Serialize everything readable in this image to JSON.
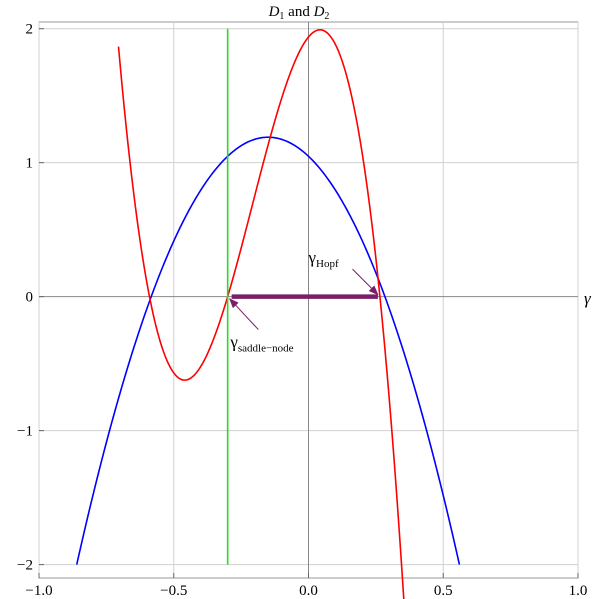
{
  "chart_data": {
    "type": "line",
    "title_parts": {
      "d": "D",
      "sub1": "1",
      "and": " and ",
      "d2": "D",
      "sub2": "2"
    },
    "xlabel": "γ",
    "ylabel": "",
    "xlim": [
      -1.0,
      1.0
    ],
    "ylim": [
      -2.1,
      2.05
    ],
    "xticks": [
      -1.0,
      -0.5,
      0.0,
      0.5,
      1.0
    ],
    "xtick_labels": [
      "−1.0",
      "−0.5",
      "0.0",
      "0.5",
      "1.0"
    ],
    "yticks": [
      -2,
      -1,
      0,
      1,
      2
    ],
    "ytick_labels": [
      "−2",
      "−1",
      "0",
      "1",
      "2"
    ],
    "grid": true,
    "series": [
      {
        "color": "#0000ff",
        "kind": "quadratic",
        "vertex": [
          -0.15,
          1.19
        ],
        "x_range": [
          -0.86,
          0.56
        ],
        "endpoint_y": -2.0
      },
      {
        "color": "#ff0000",
        "kind": "cubic",
        "roots": [
          -0.59,
          -0.3,
          0.265
        ],
        "x_range": [
          -0.705,
          0.355
        ],
        "local_min": [
          -0.46,
          -0.56
        ],
        "local_max": [
          0.05,
          1.99
        ]
      },
      {
        "color": "#22dd22",
        "kind": "vertical",
        "x": -0.3,
        "y_range": [
          -2.0,
          2.0
        ]
      },
      {
        "color": "#7a1f6a",
        "kind": "segment",
        "x_range": [
          -0.3,
          0.265
        ],
        "y": 0.0
      }
    ],
    "annotations": [
      {
        "id": "hopf",
        "base": "γ",
        "sub": "Hopf",
        "x": 0.0,
        "y": 0.25,
        "points_to": [
          0.265,
          0.0
        ]
      },
      {
        "id": "saddle-node",
        "base": "γ",
        "sub": "saddle−node",
        "x": -0.29,
        "y": -0.38,
        "points_to": [
          -0.3,
          0.0
        ]
      }
    ],
    "annotation_color": "#7a1f6a"
  }
}
